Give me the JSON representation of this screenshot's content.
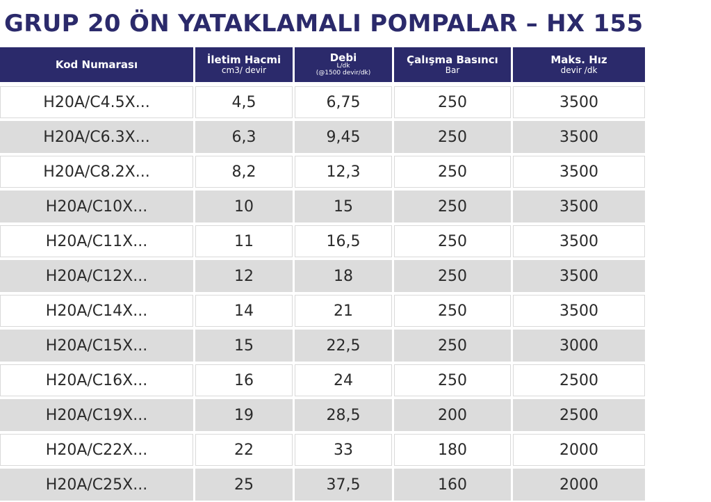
{
  "title": "GRUP 20 ÖN YATAKLAMALI POMPALAR – HX 155",
  "table": {
    "headers": [
      {
        "main": "Kod Numarası",
        "sub": ""
      },
      {
        "main": "İletim Hacmi",
        "sub": "cm3/ devir"
      },
      {
        "main": "Debi",
        "sub": "L/dk",
        "sub2": "(@1500 devir/dk)"
      },
      {
        "main": "Çalışma Basıncı",
        "sub": "Bar"
      },
      {
        "main": "Maks. Hız",
        "sub": "devir /dk"
      }
    ],
    "rows": [
      [
        "H20A/C4.5X...",
        "4,5",
        "6,75",
        "250",
        "3500"
      ],
      [
        "H20A/C6.3X...",
        "6,3",
        "9,45",
        "250",
        "3500"
      ],
      [
        "H20A/C8.2X...",
        "8,2",
        "12,3",
        "250",
        "3500"
      ],
      [
        "H20A/C10X...",
        "10",
        "15",
        "250",
        "3500"
      ],
      [
        "H20A/C11X...",
        "11",
        "16,5",
        "250",
        "3500"
      ],
      [
        "H20A/C12X...",
        "12",
        "18",
        "250",
        "3500"
      ],
      [
        "H20A/C14X...",
        "14",
        "21",
        "250",
        "3500"
      ],
      [
        "H20A/C15X...",
        "15",
        "22,5",
        "250",
        "3000"
      ],
      [
        "H20A/C16X...",
        "16",
        "24",
        "250",
        "2500"
      ],
      [
        "H20A/C19X...",
        "19",
        "28,5",
        "200",
        "2500"
      ],
      [
        "H20A/C22X...",
        "22",
        "33",
        "180",
        "2000"
      ],
      [
        "H20A/C25X...",
        "25",
        "37,5",
        "160",
        "2000"
      ]
    ]
  },
  "colors": {
    "header_bg": "#2b2a6b",
    "title": "#2b2a6b",
    "row_alt": "#dcdcdc"
  }
}
